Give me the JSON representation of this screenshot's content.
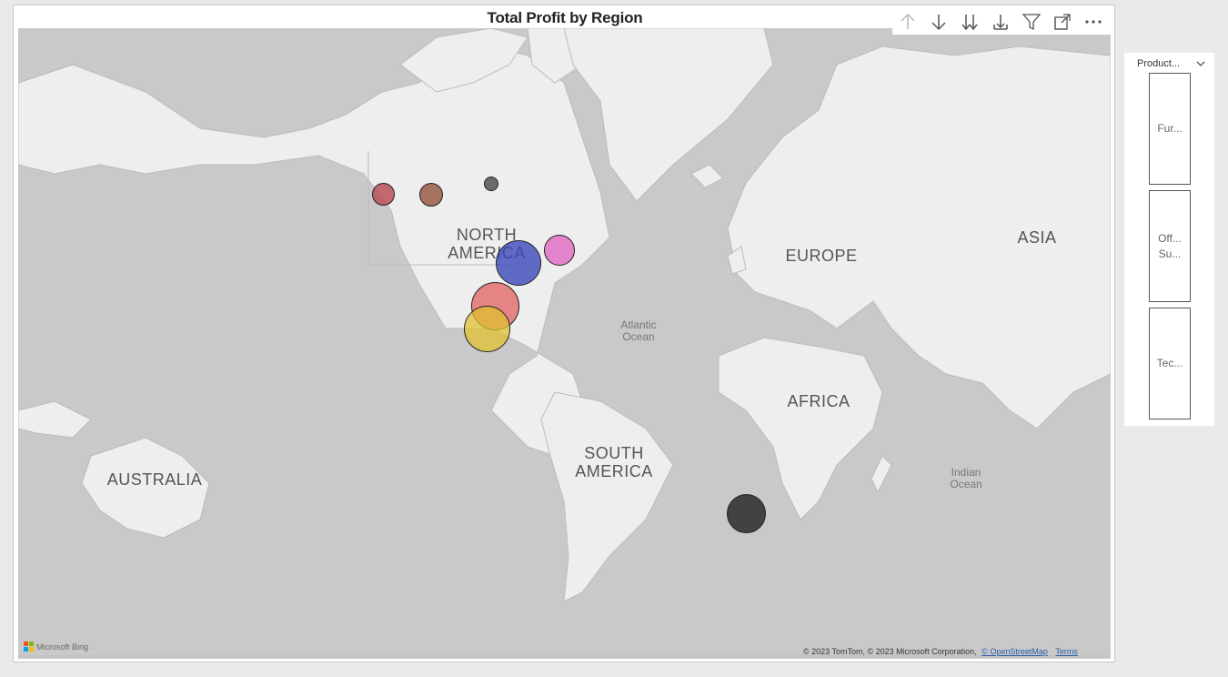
{
  "visual": {
    "title": "Total Profit by Region",
    "toolbar": [
      {
        "name": "drill-up-icon",
        "label": "Drill up"
      },
      {
        "name": "drill-down-icon",
        "label": "Drill down"
      },
      {
        "name": "next-level-icon",
        "label": "Go to next level"
      },
      {
        "name": "expand-hierarchy-icon",
        "label": "Expand all down one level"
      },
      {
        "name": "filter-icon",
        "label": "Filters"
      },
      {
        "name": "focus-mode-icon",
        "label": "Focus mode"
      },
      {
        "name": "more-options-icon",
        "label": "More options"
      }
    ]
  },
  "map": {
    "labels": {
      "north_america": "NORTH\nAMERICA",
      "europe": "EUROPE",
      "asia": "ASIA",
      "africa": "AFRICA",
      "south_america": "SOUTH\nAMERICA",
      "australia": "AUSTRALIA",
      "atlantic": "Atlantic\nOcean",
      "indian": "Indian\nOcean"
    },
    "bubbles": [
      {
        "name": "bubble-western-canada",
        "color": "#b8505a"
      },
      {
        "name": "bubble-prairie-canada",
        "color": "#9a5a45"
      },
      {
        "name": "bubble-northern-canada",
        "color": "#555555"
      },
      {
        "name": "bubble-eastern-canada",
        "color": "#e060c0"
      },
      {
        "name": "bubble-central-us",
        "color": "#3a48b8"
      },
      {
        "name": "bubble-west-us",
        "color": "#e06060"
      },
      {
        "name": "bubble-south-us",
        "color": "#e0c030"
      },
      {
        "name": "bubble-south-atlantic",
        "color": "#333333"
      }
    ],
    "attribution": {
      "logo_text": "Microsoft Bing",
      "copyright": "© 2023 TomTom, © 2023 Microsoft Corporation,",
      "osm_link": "© OpenStreetMap",
      "terms_link": "Terms"
    }
  },
  "slicer": {
    "header": "Product...",
    "items": [
      "Fur...",
      "Off...\nSu...",
      "Tec..."
    ]
  }
}
